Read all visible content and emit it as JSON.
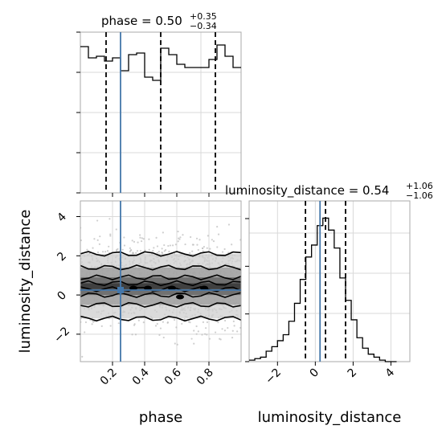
{
  "chart_data": {
    "type": "corner",
    "parameters": [
      "phase",
      "luminosity_distance"
    ],
    "truths": {
      "phase": 0.25,
      "luminosity_distance": 0.25
    },
    "truth_color": "#4477aa",
    "panels": [
      {
        "kind": "histogram",
        "parameter": "phase",
        "title_main": "phase = 0.50",
        "title_plus": "+0.35",
        "title_minus": "−0.34",
        "median": 0.5,
        "quantiles": [
          0.16,
          0.5,
          0.84
        ],
        "xlim": [
          0.0,
          1.0
        ],
        "bins": [
          0.0,
          0.05,
          0.1,
          0.15,
          0.2,
          0.25,
          0.3,
          0.35,
          0.4,
          0.45,
          0.5,
          0.55,
          0.6,
          0.65,
          0.7,
          0.75,
          0.8,
          0.85,
          0.9,
          0.95,
          1.0
        ],
        "counts": [
          0.91,
          0.84,
          0.85,
          0.82,
          0.84,
          0.76,
          0.86,
          0.87,
          0.72,
          0.7,
          0.9,
          0.86,
          0.8,
          0.78,
          0.78,
          0.78,
          0.83,
          0.92,
          0.85,
          0.78
        ],
        "ylim": [
          0,
          1.0
        ],
        "yticks_count": 4
      },
      {
        "kind": "histogram",
        "parameter": "luminosity_distance",
        "title_main": "luminosity_distance = 0.54",
        "title_plus": "+1.06",
        "title_minus": "−1.06",
        "median": 0.54,
        "quantiles": [
          -0.52,
          0.54,
          1.6
        ],
        "xlim": [
          -3.5,
          5.0
        ],
        "bins": [
          -3.5,
          -3.2,
          -2.9,
          -2.6,
          -2.3,
          -2.0,
          -1.7,
          -1.4,
          -1.1,
          -0.8,
          -0.5,
          -0.2,
          0.1,
          0.4,
          0.7,
          1.0,
          1.3,
          1.6,
          1.9,
          2.2,
          2.5,
          2.8,
          3.1,
          3.4,
          3.7,
          4.0,
          4.3
        ],
        "counts": [
          0.01,
          0.02,
          0.03,
          0.07,
          0.1,
          0.14,
          0.18,
          0.27,
          0.39,
          0.55,
          0.7,
          0.78,
          0.91,
          0.96,
          0.88,
          0.76,
          0.56,
          0.41,
          0.28,
          0.16,
          0.09,
          0.05,
          0.03,
          0.01,
          0.0,
          0.0
        ],
        "ylim": [
          0,
          1.0
        ],
        "xticks": [
          -2,
          0,
          2,
          4
        ],
        "xtick_labels": [
          "−2",
          "0",
          "2",
          "4"
        ],
        "yticks_count": 3
      },
      {
        "kind": "2d_density",
        "x_param": "phase",
        "y_param": "luminosity_distance",
        "xlim": [
          0.0,
          1.0
        ],
        "ylim": [
          -3.4,
          4.8
        ],
        "xticks": [
          0.2,
          0.4,
          0.6,
          0.8
        ],
        "xtick_labels": [
          "0.2",
          "0.4",
          "0.6",
          "0.8"
        ],
        "yticks": [
          -2,
          0,
          2,
          4
        ],
        "ytick_labels": [
          "−2",
          "0",
          "2",
          "4"
        ],
        "contour_levels_y": [
          {
            "upper": 2.1,
            "lower": -1.2
          },
          {
            "upper": 1.4,
            "lower": -0.5
          },
          {
            "upper": 0.9,
            "lower": 0.0
          },
          {
            "upper": 0.6,
            "lower": 0.3
          }
        ]
      }
    ],
    "xlabels": [
      "phase",
      "luminosity_distance"
    ],
    "ylabels": [
      "",
      "luminosity_distance"
    ]
  }
}
